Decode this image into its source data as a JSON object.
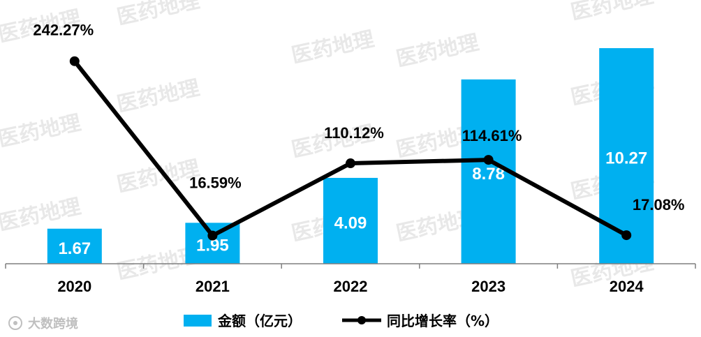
{
  "chart_data": {
    "type": "bar+line",
    "categories": [
      "2020",
      "2021",
      "2022",
      "2023",
      "2024"
    ],
    "series": [
      {
        "name": "金额（亿元）",
        "kind": "bar",
        "axis": "left",
        "values": [
          1.67,
          1.95,
          4.09,
          8.78,
          10.27
        ],
        "labels": [
          "1.67",
          "1.95",
          "4.09",
          "8.78",
          "10.27"
        ]
      },
      {
        "name": "同比增长率（%）",
        "kind": "line",
        "axis": "right",
        "values": [
          242.27,
          16.59,
          110.12,
          114.61,
          17.08
        ],
        "labels": [
          "242.27%",
          "16.59%",
          "110.12%",
          "114.61%",
          "17.08%"
        ]
      }
    ],
    "bar_axis_range": [
      0,
      11.5
    ],
    "line_axis_range": [
      0,
      270
    ],
    "legend_position": "bottom-center",
    "gridlines": false
  },
  "colors": {
    "bar": "#00b0f0",
    "line": "#000000",
    "bar_label": "#ffffff",
    "text": "#000000",
    "axis": "#7f7f7f"
  },
  "watermark": {
    "text": "医药地理",
    "source_logo": "大数跨境"
  }
}
